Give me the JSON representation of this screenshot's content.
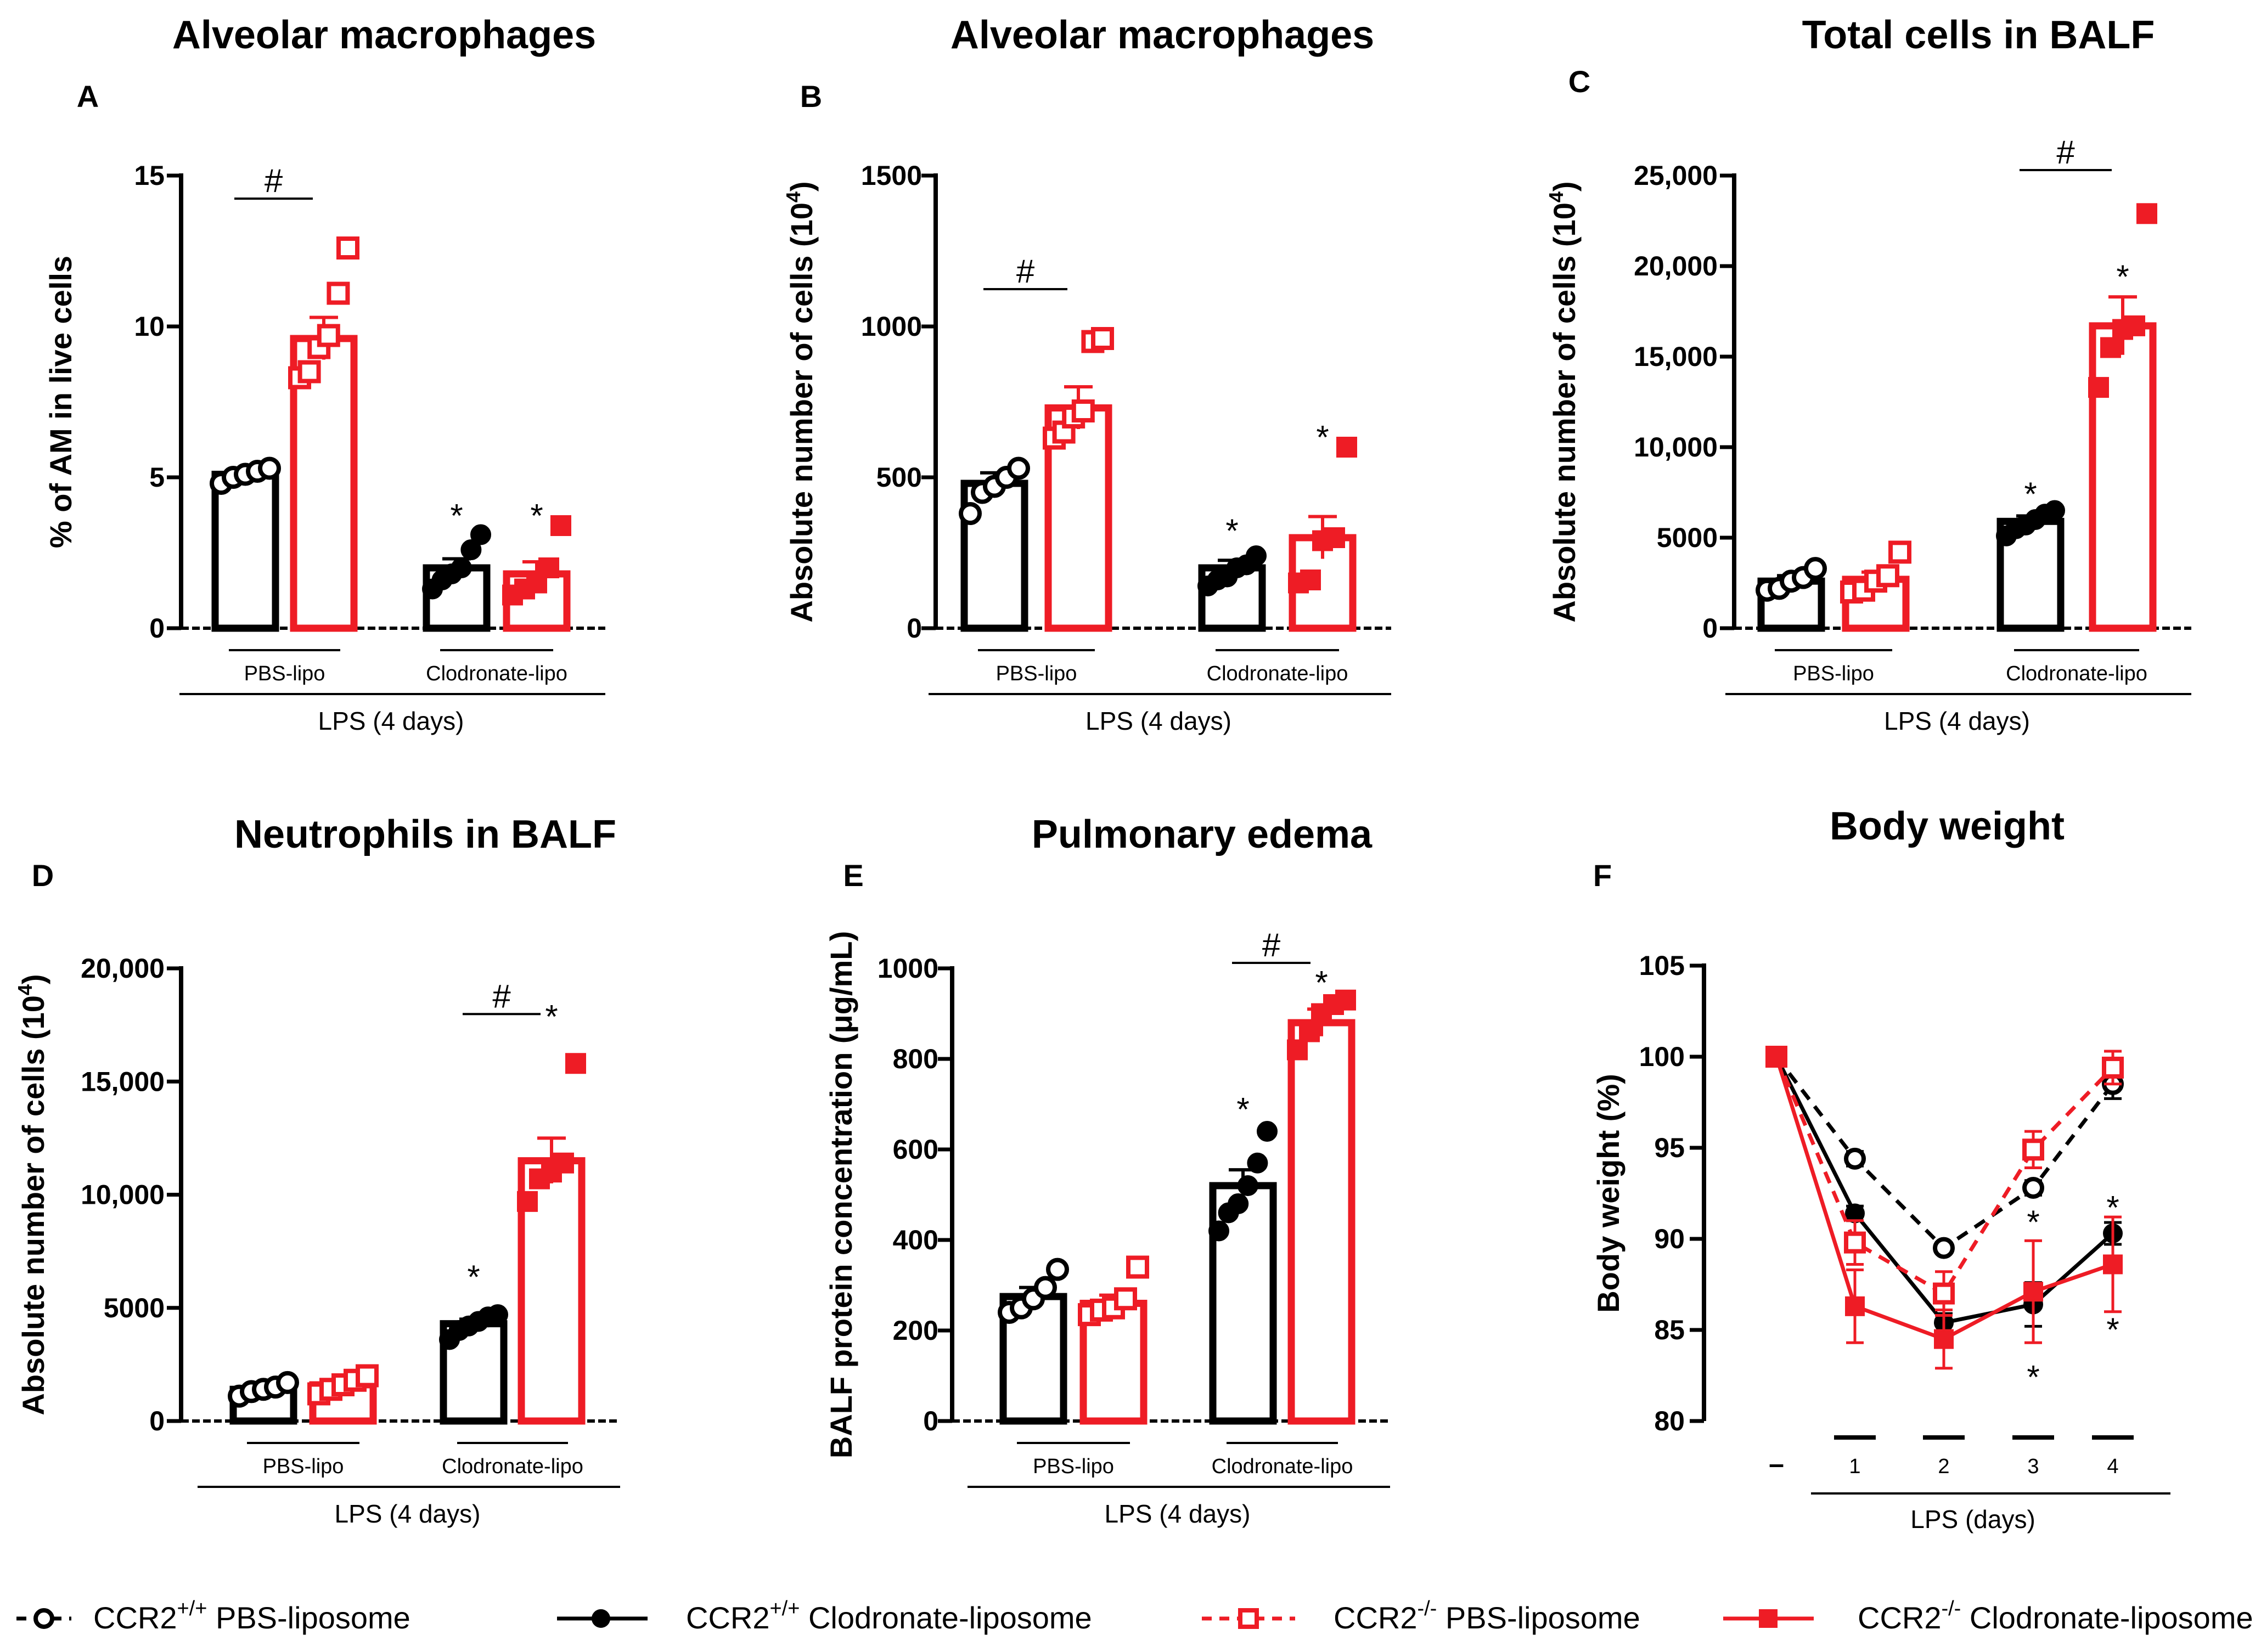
{
  "legend": [
    {
      "label": "CCR2",
      "sup": "+/+",
      "rest": " PBS-liposome",
      "color": "#000000",
      "marker": "open-circle",
      "dashed": true
    },
    {
      "label": "CCR2",
      "sup": "+/+",
      "rest": " Clodronate-liposome",
      "color": "#000000",
      "marker": "filled-circle",
      "dashed": false
    },
    {
      "label": "CCR2",
      "sup": "-/-",
      "rest": " PBS-liposome",
      "color": "#ee1c25",
      "marker": "open-square",
      "dashed": true
    },
    {
      "label": "CCR2",
      "sup": "-/-",
      "rest": " Clodronate-liposome",
      "color": "#ee1c25",
      "marker": "filled-square",
      "dashed": false
    }
  ],
  "colors": {
    "black": "#000000",
    "red": "#ee1c25"
  },
  "chart_data": [
    {
      "panel": "A",
      "type": "bar",
      "title": "Alveolar macrophages",
      "ylabel": "% of AM in live cells",
      "ylim": [
        0,
        15
      ],
      "yticks": [
        "0",
        "5",
        "10",
        "15"
      ],
      "groups": [
        "PBS-lipo",
        "Clodronate-lipo"
      ],
      "xlabel": "LPS (4 days)",
      "bars": [
        {
          "group": "PBS-lipo",
          "genotype": "CCR2+/+",
          "mean": 5.1,
          "sem": 0.15,
          "points": [
            4.8,
            5.0,
            5.1,
            5.2,
            5.3
          ]
        },
        {
          "group": "PBS-lipo",
          "genotype": "CCR2-/-",
          "mean": 9.6,
          "sem": 0.7,
          "points": [
            8.3,
            8.5,
            9.3,
            9.7,
            11.1,
            12.6
          ]
        },
        {
          "group": "Clodronate-lipo",
          "genotype": "CCR2+/+",
          "mean": 2.0,
          "sem": 0.3,
          "points": [
            1.3,
            1.6,
            1.8,
            2.0,
            2.6,
            3.1
          ]
        },
        {
          "group": "Clodronate-lipo",
          "genotype": "CCR2-/-",
          "mean": 1.8,
          "sem": 0.4,
          "points": [
            1.1,
            1.3,
            1.5,
            2.0,
            3.4
          ]
        }
      ],
      "hash": {
        "label": "#",
        "group": "PBS-lipo"
      },
      "stars": [
        {
          "label": "*",
          "group": "Clodronate-lipo",
          "genotype": "CCR2+/+",
          "y": 3.9
        },
        {
          "label": "*",
          "group": "Clodronate-lipo",
          "genotype": "CCR2-/-",
          "y": 3.9
        }
      ]
    },
    {
      "panel": "B",
      "type": "bar",
      "title": "Alveolar macrophages",
      "ylabel": "Absolute number of cells (10",
      "ylabel_sup": "4",
      "ylabel_end": ")",
      "ylim": [
        0,
        1500
      ],
      "yticks": [
        "0",
        "500",
        "1000",
        "1500"
      ],
      "groups": [
        "PBS-lipo",
        "Clodronate-lipo"
      ],
      "xlabel": "LPS (4 days)",
      "bars": [
        {
          "group": "PBS-lipo",
          "genotype": "CCR2+/+",
          "mean": 480,
          "sem": 35,
          "points": [
            380,
            450,
            470,
            500,
            530
          ]
        },
        {
          "group": "PBS-lipo",
          "genotype": "CCR2-/-",
          "mean": 730,
          "sem": 70,
          "points": [
            630,
            650,
            700,
            720,
            950,
            960
          ]
        },
        {
          "group": "Clodronate-lipo",
          "genotype": "CCR2+/+",
          "mean": 200,
          "sem": 25,
          "points": [
            140,
            160,
            170,
            200,
            210,
            240
          ]
        },
        {
          "group": "Clodronate-lipo",
          "genotype": "CCR2-/-",
          "mean": 300,
          "sem": 70,
          "points": [
            150,
            160,
            290,
            300,
            600
          ]
        }
      ],
      "hash": {
        "label": "#",
        "group": "PBS-lipo"
      },
      "stars": [
        {
          "label": "*",
          "group": "Clodronate-lipo",
          "genotype": "CCR2+/+",
          "y": 340
        },
        {
          "label": "*",
          "group": "Clodronate-lipo",
          "genotype": "CCR2-/-",
          "y": 650
        }
      ]
    },
    {
      "panel": "C",
      "type": "bar",
      "title": "Total cells in BALF",
      "ylabel": "Absolute number of cells (10",
      "ylabel_sup": "4",
      "ylabel_end": ")",
      "ylim": [
        0,
        25000
      ],
      "yticks": [
        "0",
        "5000",
        "10,000",
        "15,000",
        "20,000",
        "25,000"
      ],
      "groups": [
        "PBS-lipo",
        "Clodronate-lipo"
      ],
      "xlabel": "LPS (4 days)",
      "bars": [
        {
          "group": "PBS-lipo",
          "genotype": "CCR2+/+",
          "mean": 2600,
          "sem": 300,
          "points": [
            2100,
            2200,
            2600,
            2800,
            3300
          ]
        },
        {
          "group": "PBS-lipo",
          "genotype": "CCR2-/-",
          "mean": 2700,
          "sem": 400,
          "points": [
            2000,
            2100,
            2600,
            2900,
            4200
          ]
        },
        {
          "group": "Clodronate-lipo",
          "genotype": "CCR2+/+",
          "mean": 5900,
          "sem": 300,
          "points": [
            5100,
            5500,
            5700,
            6000,
            6300,
            6500
          ]
        },
        {
          "group": "Clodronate-lipo",
          "genotype": "CCR2-/-",
          "mean": 16700,
          "sem": 1600,
          "points": [
            13300,
            15500,
            16500,
            16700,
            22900
          ]
        }
      ],
      "hash": {
        "label": "#",
        "group": "Clodronate-lipo"
      },
      "stars": [
        {
          "label": "*",
          "group": "Clodronate-lipo",
          "genotype": "CCR2+/+",
          "y": 7700
        },
        {
          "label": "*",
          "group": "Clodronate-lipo",
          "genotype": "CCR2-/-",
          "y": 19700
        }
      ]
    },
    {
      "panel": "D",
      "type": "bar",
      "title": "Neutrophils in BALF",
      "ylabel": "Absolute number of cells (10",
      "ylabel_sup": "4",
      "ylabel_end": ")",
      "ylim": [
        0,
        20000
      ],
      "yticks": [
        "0",
        "5000",
        "10,000",
        "15,000",
        "20,000"
      ],
      "groups": [
        "PBS-lipo",
        "Clodronate-lipo"
      ],
      "xlabel": "LPS (4 days)",
      "bars": [
        {
          "group": "PBS-lipo",
          "genotype": "CCR2+/+",
          "mean": 1400,
          "sem": 150,
          "points": [
            1100,
            1300,
            1400,
            1500,
            1700
          ]
        },
        {
          "group": "PBS-lipo",
          "genotype": "CCR2-/-",
          "mean": 1600,
          "sem": 150,
          "points": [
            1200,
            1400,
            1600,
            1800,
            2000
          ]
        },
        {
          "group": "Clodronate-lipo",
          "genotype": "CCR2+/+",
          "mean": 4300,
          "sem": 200,
          "points": [
            3600,
            4000,
            4200,
            4400,
            4600,
            4700
          ]
        },
        {
          "group": "Clodronate-lipo",
          "genotype": "CCR2-/-",
          "mean": 11500,
          "sem": 1000,
          "points": [
            9700,
            10700,
            11000,
            11400,
            15800
          ]
        }
      ],
      "hash": {
        "label": "#",
        "group": "Clodronate-lipo"
      },
      "stars": [
        {
          "label": "*",
          "group": "Clodronate-lipo",
          "genotype": "CCR2+/+",
          "y": 6600
        },
        {
          "label": "*",
          "group": "Clodronate-lipo",
          "genotype": "CCR2-/-",
          "y": 18100
        }
      ]
    },
    {
      "panel": "E",
      "type": "bar",
      "title": "Pulmonary edema",
      "ylabel": "BALF protein concentration (μg/mL)",
      "ylim": [
        0,
        1000
      ],
      "yticks": [
        "0",
        "200",
        "400",
        "600",
        "800",
        "1000"
      ],
      "groups": [
        "PBS-lipo",
        "Clodronate-lipo"
      ],
      "xlabel": "LPS (4 days)",
      "bars": [
        {
          "group": "PBS-lipo",
          "genotype": "CCR2+/+",
          "mean": 275,
          "sem": 20,
          "points": [
            240,
            250,
            270,
            295,
            335
          ]
        },
        {
          "group": "PBS-lipo",
          "genotype": "CCR2-/-",
          "mean": 260,
          "sem": 18,
          "points": [
            235,
            245,
            250,
            270,
            340
          ]
        },
        {
          "group": "Clodronate-lipo",
          "genotype": "CCR2+/+",
          "mean": 520,
          "sem": 35,
          "points": [
            420,
            460,
            480,
            520,
            570,
            640
          ]
        },
        {
          "group": "Clodronate-lipo",
          "genotype": "CCR2-/-",
          "mean": 880,
          "sem": 30,
          "points": [
            820,
            860,
            900,
            920,
            930
          ]
        }
      ],
      "hash": {
        "label": "#",
        "group": "Clodronate-lipo"
      },
      "stars": [
        {
          "label": "*",
          "group": "Clodronate-lipo",
          "genotype": "CCR2+/+",
          "y": 700
        },
        {
          "label": "*",
          "group": "Clodronate-lipo",
          "genotype": "CCR2-/-",
          "y": 980
        }
      ]
    },
    {
      "panel": "F",
      "type": "line",
      "title": "Body weight",
      "ylabel": "Body weight (%)",
      "ylim": [
        80,
        105
      ],
      "yticks": [
        "80",
        "85",
        "90",
        "95",
        "100",
        "105"
      ],
      "x": [
        "–",
        "1",
        "2",
        "3",
        "4"
      ],
      "xlabel": "LPS (days)",
      "series": [
        {
          "name": "CCR2+/+ PBS-liposome",
          "values": [
            100,
            94.4,
            89.5,
            92.8,
            98.5
          ],
          "sem": [
            0.2,
            0.4,
            0.3,
            0.4,
            0.8
          ]
        },
        {
          "name": "CCR2+/+ Clodronate-liposome",
          "values": [
            100,
            91.4,
            85.4,
            86.4,
            90.3
          ],
          "sem": [
            0.2,
            0.4,
            0.5,
            1.2,
            0.6
          ]
        },
        {
          "name": "CCR2-/- PBS-liposome",
          "values": [
            100,
            89.8,
            87.0,
            94.9,
            99.4
          ],
          "sem": [
            0.2,
            1.2,
            1.2,
            1.0,
            0.9
          ]
        },
        {
          "name": "CCR2-/- Clodronate-liposome",
          "values": [
            100,
            86.3,
            84.5,
            87.1,
            88.6
          ],
          "sem": [
            0.2,
            2.0,
            1.6,
            2.8,
            2.6
          ]
        }
      ],
      "stars": [
        {
          "label": "*",
          "x": "3",
          "y": 91.2
        },
        {
          "label": "*",
          "x": "3",
          "y": 82.7
        },
        {
          "label": "*",
          "x": "4",
          "y": 92.0
        },
        {
          "label": "*",
          "x": "4",
          "y": 85.3
        }
      ]
    }
  ]
}
